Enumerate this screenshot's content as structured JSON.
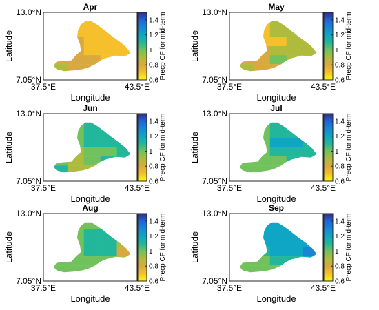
{
  "figure": {
    "panels": [
      {
        "title": "Apr",
        "cells": [
          [
            0.8,
            0.7,
            0.7,
            0.7,
            0.7
          ],
          [
            0.8,
            0.7,
            0.7,
            0.7,
            0.7
          ],
          [
            0.8,
            0.8,
            0.7,
            0.7,
            0.7
          ],
          [
            0.8,
            0.8,
            0.7,
            0.7,
            0.7
          ],
          [
            0.8,
            0.8,
            0.8,
            0.7,
            0.7
          ],
          [
            0.9,
            0.8,
            0.8,
            0.8,
            0.8
          ]
        ]
      },
      {
        "title": "May",
        "cells": [
          [
            0.8,
            0.7,
            0.9,
            0.9,
            0.9
          ],
          [
            0.8,
            0.7,
            0.9,
            0.9,
            0.9
          ],
          [
            0.8,
            0.7,
            0.7,
            0.9,
            0.9
          ],
          [
            0.8,
            0.8,
            0.9,
            0.9,
            0.9
          ],
          [
            0.8,
            0.8,
            1.0,
            0.9,
            0.9
          ],
          [
            0.9,
            0.8,
            0.8,
            0.9,
            0.9
          ]
        ]
      },
      {
        "title": "Jun",
        "cells": [
          [
            1.0,
            1.0,
            1.1,
            1.1,
            1.1
          ],
          [
            1.0,
            1.0,
            1.1,
            1.1,
            1.1
          ],
          [
            1.0,
            1.0,
            1.1,
            1.1,
            1.1
          ],
          [
            1.0,
            0.9,
            1.0,
            1.0,
            1.1
          ],
          [
            1.0,
            0.9,
            1.0,
            1.1,
            1.1
          ],
          [
            1.1,
            0.9,
            0.9,
            1.0,
            1.0
          ]
        ]
      },
      {
        "title": "Jul",
        "cells": [
          [
            1.0,
            1.0,
            1.1,
            1.1,
            1.1
          ],
          [
            1.0,
            1.0,
            1.1,
            1.1,
            1.1
          ],
          [
            1.0,
            1.0,
            1.2,
            1.2,
            1.1
          ],
          [
            1.0,
            1.0,
            1.1,
            1.1,
            1.1
          ],
          [
            1.0,
            1.0,
            1.0,
            1.1,
            1.1
          ],
          [
            1.0,
            1.0,
            1.0,
            1.0,
            1.0
          ]
        ]
      },
      {
        "title": "Aug",
        "cells": [
          [
            1.0,
            1.0,
            1.0,
            1.1,
            1.0
          ],
          [
            1.0,
            1.0,
            1.1,
            1.1,
            1.0
          ],
          [
            1.0,
            1.0,
            1.1,
            1.1,
            0.9
          ],
          [
            1.0,
            1.0,
            1.1,
            1.1,
            0.8
          ],
          [
            1.0,
            1.0,
            1.0,
            1.0,
            0.9
          ],
          [
            1.0,
            1.0,
            1.0,
            1.0,
            1.0
          ]
        ]
      },
      {
        "title": "Sep",
        "cells": [
          [
            1.0,
            1.2,
            1.2,
            1.2,
            1.2
          ],
          [
            1.0,
            1.2,
            1.2,
            1.2,
            1.2
          ],
          [
            1.0,
            1.2,
            1.2,
            1.2,
            1.2
          ],
          [
            1.0,
            1.1,
            1.2,
            1.2,
            1.3
          ],
          [
            1.0,
            1.0,
            1.1,
            1.1,
            1.2
          ],
          [
            1.0,
            1.0,
            1.0,
            1.1,
            1.1
          ]
        ]
      }
    ],
    "lat_ticks": [
      "13.0°N",
      "7.05°N"
    ],
    "lon_ticks": [
      "37.5°E",
      "43.5°E"
    ],
    "ylabel": "Latitude",
    "xlabel": "Longitude",
    "colorbar": {
      "label": "Precp CF for mid-term",
      "range": [
        0.6,
        1.5
      ],
      "ticks": [
        "1.4",
        "1.2",
        "1",
        "0.8",
        "0.6"
      ],
      "tick_values": [
        1.4,
        1.2,
        1.0,
        0.8,
        0.6
      ],
      "colormap": "parula"
    },
    "colors": {
      "frame": "#262626",
      "background": "#ffffff"
    }
  }
}
